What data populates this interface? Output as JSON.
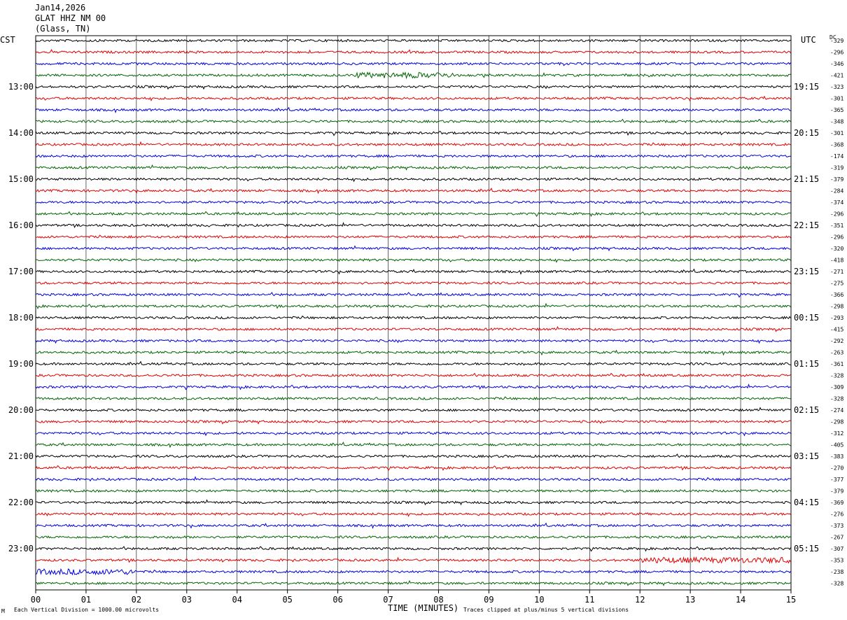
{
  "header": {
    "date": "Jan14,2026",
    "station": "GLAT HHZ NM 00",
    "location": "(Glass, TN)"
  },
  "labels": {
    "left_tz": "CST",
    "right_tz": "UTC",
    "dc": "DC",
    "xlabel": "TIME (MINUTES)",
    "scale_note": "Each Vertical Division = 1000.00 microvolts",
    "clip_note": "Traces clipped at plus/minus 5 vertical divisions",
    "corner_mark": "M"
  },
  "colors": {
    "trace_cycle": [
      "#000000",
      "#e00000",
      "#0000e0",
      "#006400"
    ],
    "grid": "#000000",
    "background": "#ffffff"
  },
  "chart_data": {
    "type": "line",
    "description_kind": "helicorder",
    "x_ticks": [
      "00",
      "01",
      "02",
      "03",
      "04",
      "05",
      "06",
      "07",
      "08",
      "09",
      "10",
      "11",
      "12",
      "13",
      "14",
      "15"
    ],
    "xlim": [
      0,
      15
    ],
    "left_hour_labels": [
      "13:00",
      "14:00",
      "15:00",
      "16:00",
      "17:00",
      "18:00",
      "19:00",
      "20:00",
      "21:00",
      "22:00",
      "23:00"
    ],
    "right_hour_labels": [
      "19:15",
      "20:15",
      "21:15",
      "22:15",
      "23:15",
      "00:15",
      "01:15",
      "02:15",
      "03:15",
      "04:15",
      "05:15"
    ],
    "dc_offsets": [
      "-329",
      "-296",
      "-346",
      "-421",
      "-323",
      "-301",
      "-365",
      "-348",
      "-301",
      "-368",
      "-174",
      "-319",
      "-379",
      "-284",
      "-374",
      "-296",
      "-351",
      "-296",
      "-320",
      "-418",
      "-271",
      "-275",
      "-366",
      "-298",
      "-293",
      "-415",
      "-292",
      "-263",
      "-361",
      "-328",
      "-309",
      "-328",
      "-274",
      "-298",
      "-312",
      "-405",
      "-383",
      "-270",
      "-377",
      "-379",
      "-369",
      "-276",
      "-373",
      "-267",
      "-307",
      "-353",
      "-238",
      "-328"
    ],
    "trace_count": 48,
    "active_segments": [
      {
        "trace": 3,
        "start_min": 6.3,
        "end_min": 8.3
      },
      {
        "trace": 45,
        "start_min": 12.0,
        "end_min": 15.0
      },
      {
        "trace": 46,
        "start_min": 0.0,
        "end_min": 2.0
      }
    ]
  }
}
